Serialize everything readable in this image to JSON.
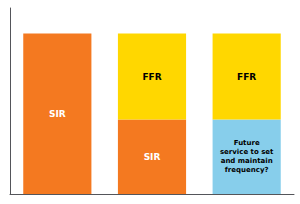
{
  "chart_data": {
    "type": "bar",
    "stacked": true,
    "categories": [
      null,
      null,
      null
    ],
    "series": [
      {
        "name": "SIR",
        "color": "#F47920",
        "values": [
          0.82,
          0.38,
          null
        ]
      },
      {
        "name": "Future\nservice to set\nand maintain\nfrequency?",
        "color": "#87CEEB",
        "values": [
          null,
          null,
          0.38
        ]
      },
      {
        "name": "FFR",
        "color": "#FFD700",
        "values": [
          null,
          0.44,
          0.44
        ]
      }
    ],
    "ylim": [
      0,
      0.95
    ],
    "yticks": [],
    "grid": false,
    "tick_labels": false
  }
}
